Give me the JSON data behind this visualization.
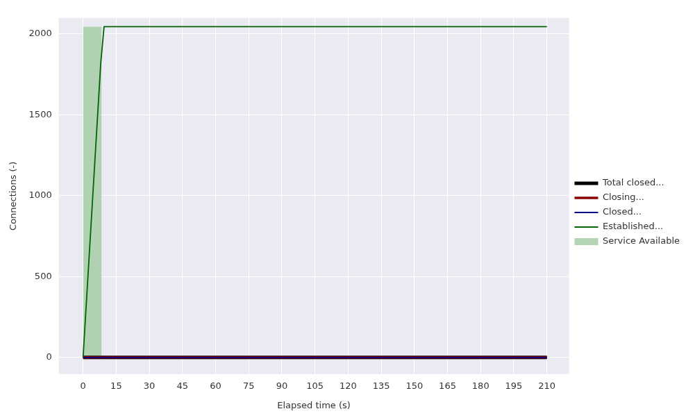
{
  "chart_data": {
    "type": "line",
    "xlabel": "Elapsed time (s)",
    "ylabel": "Connections (-)",
    "xlim": [
      -11,
      220
    ],
    "ylim": [
      -103,
      2099
    ],
    "xticks": [
      0,
      15,
      30,
      45,
      60,
      75,
      90,
      105,
      120,
      135,
      150,
      165,
      180,
      195,
      210
    ],
    "yticks": [
      0,
      500,
      1000,
      1500,
      2000
    ],
    "grid": true,
    "legend": "right",
    "marker": "none",
    "line_style": "solid",
    "series": [
      {
        "name": "Service Available",
        "type": "area",
        "color": "#a3cca3",
        "x": [
          0,
          8.4
        ],
        "values": [
          2045,
          2045
        ]
      },
      {
        "name": "Total closed...",
        "color": "#000000",
        "x": [
          0,
          210
        ],
        "values": [
          0,
          0
        ]
      },
      {
        "name": "Closing...",
        "color": "#8b0000",
        "x": [
          0,
          210
        ],
        "values": [
          0,
          0
        ]
      },
      {
        "name": "Closed...",
        "color": "#00008b",
        "x": [
          0,
          210
        ],
        "values": [
          0,
          0
        ]
      },
      {
        "name": "Established...",
        "color": "#006400",
        "x": [
          0,
          1,
          2,
          3,
          4,
          5,
          6,
          7,
          8,
          9.5,
          210
        ],
        "values": [
          0,
          228,
          455,
          683,
          910,
          1138,
          1365,
          1593,
          1820,
          2045,
          2045
        ]
      }
    ]
  }
}
